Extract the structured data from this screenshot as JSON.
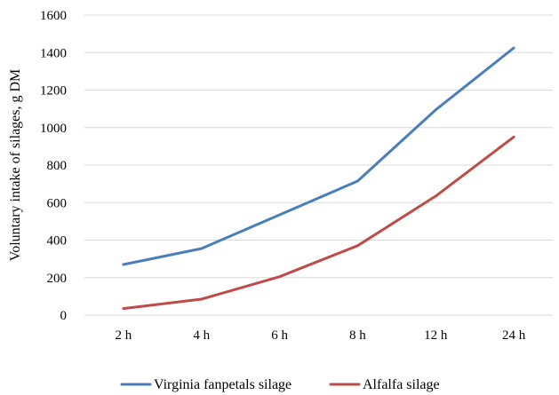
{
  "chart_data": {
    "type": "line",
    "title": "",
    "xlabel": "",
    "ylabel": "Voluntary intake of silages, g DM",
    "categories": [
      "2 h",
      "4 h",
      "6 h",
      "8 h",
      "12 h",
      "24 h"
    ],
    "ylim": [
      0,
      1600
    ],
    "yticks": [
      0,
      200,
      400,
      600,
      800,
      1000,
      1200,
      1400,
      1600
    ],
    "grid": true,
    "legend_position": "bottom",
    "series": [
      {
        "name": "Virginia fanpetals silage",
        "color": "#4a7ebb",
        "values": [
          270,
          355,
          535,
          715,
          1095,
          1425
        ]
      },
      {
        "name": "Alfalfa silage",
        "color": "#be4b48",
        "values": [
          35,
          85,
          205,
          370,
          635,
          950
        ]
      }
    ]
  }
}
